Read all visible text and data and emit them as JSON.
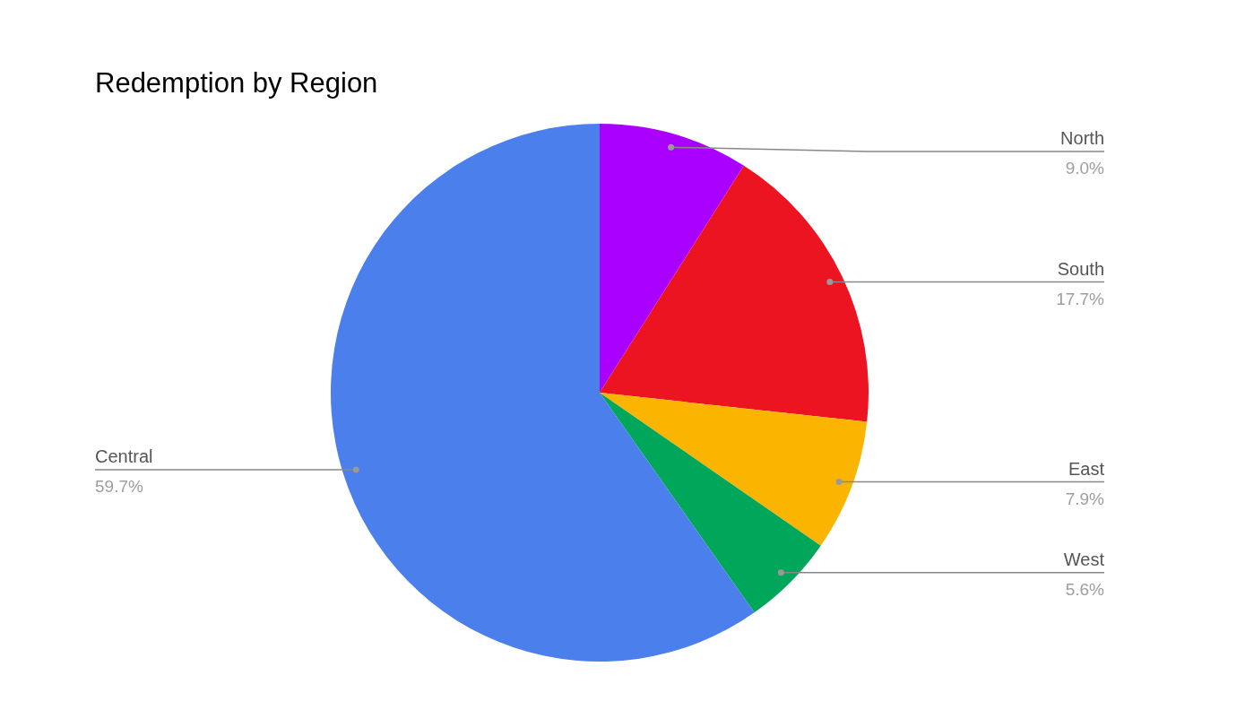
{
  "chart_data": {
    "type": "pie",
    "title": "Redemption by Region",
    "categories": [
      "North",
      "South",
      "East",
      "West",
      "Central"
    ],
    "values": [
      9.0,
      17.7,
      7.9,
      5.6,
      59.7
    ],
    "value_labels": [
      "9.0%",
      "17.7%",
      "7.9%",
      "5.6%",
      "59.7%"
    ],
    "colors": [
      "#aa00ff",
      "#ec1421",
      "#fbb400",
      "#00a659",
      "#4a7fec"
    ]
  }
}
